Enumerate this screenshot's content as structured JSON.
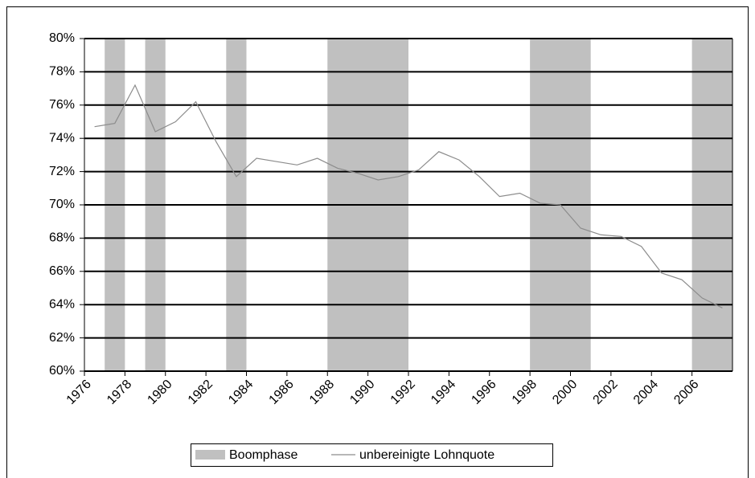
{
  "chart_data": {
    "type": "line",
    "x": [
      1976,
      1977,
      1978,
      1979,
      1980,
      1981,
      1982,
      1983,
      1984,
      1985,
      1986,
      1987,
      1988,
      1989,
      1990,
      1991,
      1992,
      1993,
      1994,
      1995,
      1996,
      1997,
      1998,
      1999,
      2000,
      2001,
      2002,
      2003,
      2004,
      2005,
      2006,
      2007
    ],
    "series": [
      {
        "name": "unbereinigte Lohnquote",
        "color": "#8c8c8c",
        "values": [
          74.7,
          74.9,
          77.2,
          74.4,
          75.0,
          76.2,
          73.8,
          71.7,
          72.8,
          72.6,
          72.4,
          72.8,
          72.2,
          71.9,
          71.5,
          71.7,
          72.1,
          73.2,
          72.7,
          71.7,
          70.5,
          70.7,
          70.1,
          70.0,
          68.6,
          68.2,
          68.1,
          67.5,
          65.9,
          65.5,
          64.4,
          63.8
        ]
      }
    ],
    "boom_phases": {
      "name": "Boomphase",
      "color": "#c0c0c0",
      "start": [
        1977,
        1979,
        1983,
        1988,
        1998,
        2006
      ],
      "end": [
        1977,
        1979,
        1983,
        1991,
        2000,
        2007
      ]
    },
    "xlim": [
      1976,
      2008
    ],
    "xticks": [
      1976,
      1978,
      1980,
      1982,
      1984,
      1986,
      1988,
      1990,
      1992,
      1994,
      1996,
      1998,
      2000,
      2002,
      2004,
      2006
    ],
    "ylim": [
      60,
      80
    ],
    "yticks": [
      {
        "value": 60,
        "label": "60%"
      },
      {
        "value": 62,
        "label": "62%"
      },
      {
        "value": 64,
        "label": "64%"
      },
      {
        "value": 66,
        "label": "66%"
      },
      {
        "value": 68,
        "label": "68%"
      },
      {
        "value": 70,
        "label": "70%"
      },
      {
        "value": 72,
        "label": "72%"
      },
      {
        "value": 74,
        "label": "74%"
      },
      {
        "value": 76,
        "label": "76%"
      },
      {
        "value": 78,
        "label": "78%"
      },
      {
        "value": 80,
        "label": "80%"
      }
    ],
    "grid": true
  }
}
